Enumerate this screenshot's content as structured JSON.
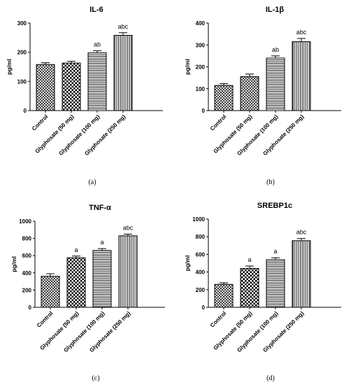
{
  "chart_data": [
    {
      "type": "bar",
      "title": "IL-6",
      "ylabel": "pg/ml",
      "panel_label": "(a)",
      "categories": [
        "Control",
        "Glyphosate (50 mg)",
        "Glyphosate (100 mg)",
        "Glyphosate (250 mg)"
      ],
      "values": [
        158,
        163,
        198,
        258
      ],
      "errors": [
        6,
        6,
        7,
        9
      ],
      "significance": [
        "",
        "",
        "ab",
        "abc"
      ],
      "ylim": [
        0,
        300
      ],
      "yticks": [
        0,
        100,
        200,
        300
      ],
      "patterns": [
        "diag-cross",
        "checker",
        "horiz",
        "vert"
      ]
    },
    {
      "type": "bar",
      "title": "IL-1β",
      "ylabel": "pg/ml",
      "panel_label": "(b)",
      "categories": [
        "Control",
        "Glyphosate (50 mg)",
        "Glyphosate (100 mg)",
        "Glyphosate (250 mg)"
      ],
      "values": [
        115,
        155,
        240,
        315
      ],
      "errors": [
        8,
        12,
        10,
        15
      ],
      "significance": [
        "",
        "",
        "ab",
        "abc"
      ],
      "ylim": [
        0,
        400
      ],
      "yticks": [
        0,
        100,
        200,
        300,
        400
      ],
      "patterns": [
        "diag-cross",
        "diag-cross",
        "horiz",
        "vert"
      ]
    },
    {
      "type": "bar",
      "title": "TNF-α",
      "ylabel": "pg/ml",
      "panel_label": "(c)",
      "categories": [
        "Control",
        "Glyphosate (50 mg)",
        "Glyphosate (100 mg)",
        "Glyphosate (250 mg)"
      ],
      "values": [
        360,
        575,
        660,
        830
      ],
      "errors": [
        30,
        20,
        22,
        20
      ],
      "significance": [
        "",
        "a",
        "a",
        "abc"
      ],
      "ylim": [
        0,
        1000
      ],
      "yticks": [
        0,
        200,
        400,
        600,
        800,
        1000
      ],
      "patterns": [
        "diag-cross",
        "checker",
        "horiz",
        "vert"
      ]
    },
    {
      "type": "bar",
      "title": "SREBP1c",
      "ylabel": "pg/ml",
      "panel_label": "(d)",
      "categories": [
        "Control",
        "Glyphosate (50 mg)",
        "Glyphosate (100 mg)",
        "Glyphosate (250 mg)"
      ],
      "values": [
        260,
        440,
        540,
        755
      ],
      "errors": [
        18,
        28,
        22,
        25
      ],
      "significance": [
        "",
        "a",
        "a",
        "abc"
      ],
      "ylim": [
        0,
        1000
      ],
      "yticks": [
        0,
        200,
        400,
        600,
        800,
        1000
      ],
      "patterns": [
        "diag-cross",
        "checker",
        "horiz",
        "vert"
      ]
    }
  ]
}
